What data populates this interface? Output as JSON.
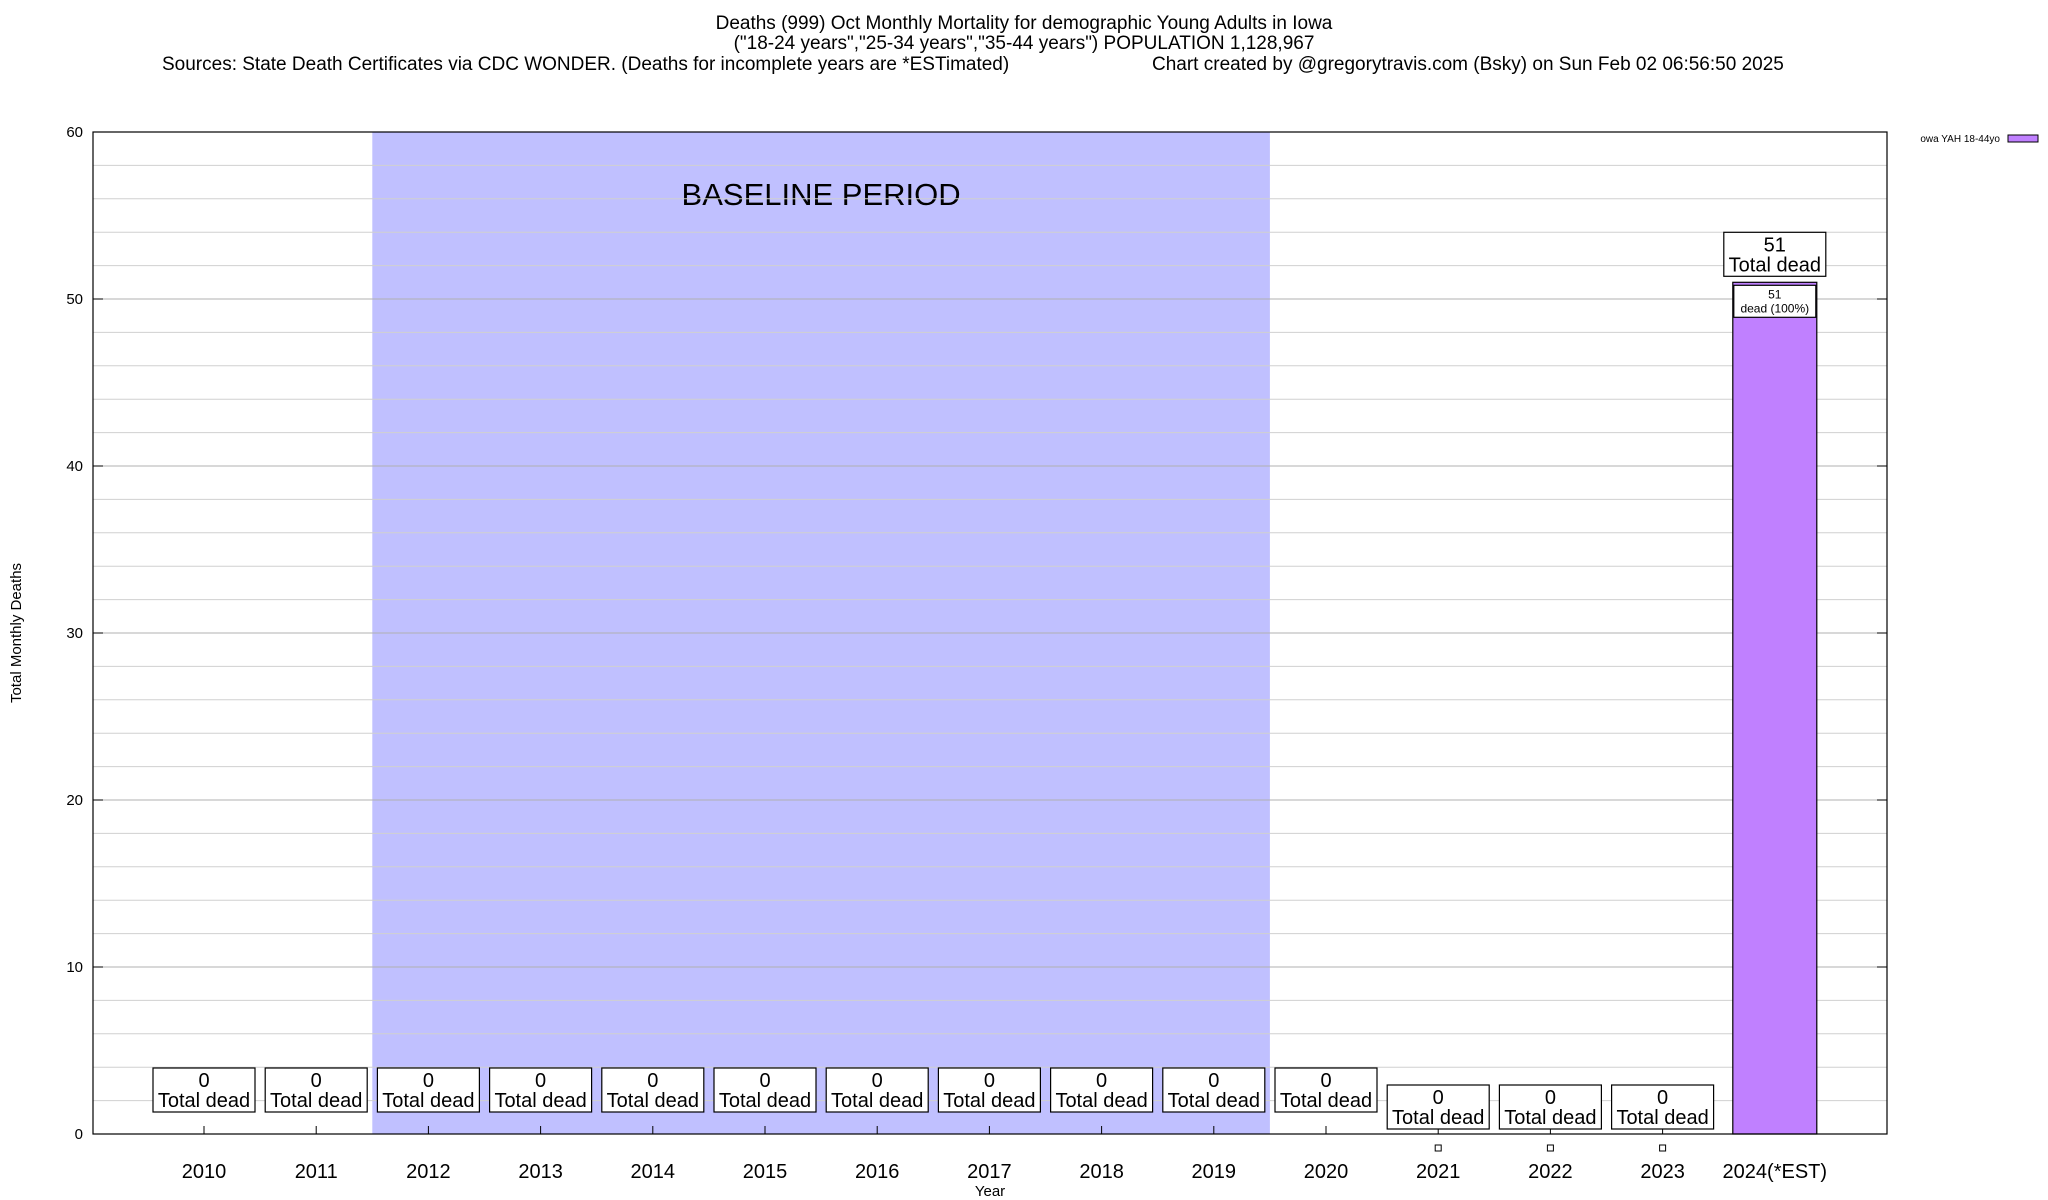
{
  "header": {
    "title_line1": "Deaths (999) Oct Monthly Mortality for demographic Young Adults in Iowa",
    "title_line2": "(\"18-24 years\",\"25-34 years\",\"35-44 years\") POPULATION 1,128,967",
    "sources": "Sources: State Death Certificates via CDC WONDER. (Deaths for incomplete years are *ESTimated)",
    "credit": "Chart created by @gregorytravis.com (Bsky) on Sun Feb 02 06:56:50 2025"
  },
  "chart_data": {
    "type": "bar",
    "xlabel": "Year",
    "ylabel": "Total Monthly Deaths",
    "ylim": [
      0,
      60
    ],
    "yticks": [
      0,
      10,
      20,
      30,
      40,
      50,
      60
    ],
    "minor_step": 2,
    "categories": [
      "2010",
      "2011",
      "2012",
      "2013",
      "2014",
      "2015",
      "2016",
      "2017",
      "2018",
      "2019",
      "2020",
      "2021",
      "2022",
      "2023",
      "2024(*EST)"
    ],
    "series": [
      {
        "name": "owa YAH 18-44yo",
        "color": "#c080ff",
        "values": [
          0,
          0,
          0,
          0,
          0,
          0,
          0,
          0,
          0,
          0,
          0,
          0,
          0,
          0,
          51
        ]
      }
    ],
    "total_label": "Total dead",
    "bar_label": "51",
    "bar_sublabel": "dead (100%)",
    "baseline": {
      "label": "BASELINE PERIOD",
      "start_category": "2012",
      "end_category": "2019",
      "color": "#c0c0ff"
    },
    "grid": true,
    "legend_position": "top-right"
  }
}
